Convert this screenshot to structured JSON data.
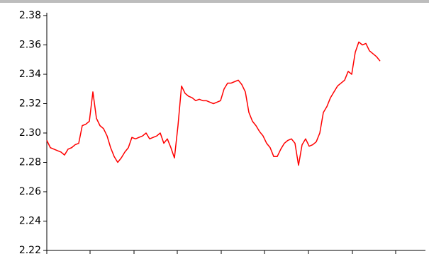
{
  "chart_data": {
    "type": "line",
    "series": [
      {
        "color": "#ff0000",
        "values": [
          2.295,
          2.29,
          2.289,
          2.288,
          2.287,
          2.285,
          2.289,
          2.29,
          2.292,
          2.293,
          2.305,
          2.306,
          2.308,
          2.328,
          2.31,
          2.305,
          2.303,
          2.298,
          2.29,
          2.284,
          2.28,
          2.283,
          2.287,
          2.29,
          2.297,
          2.296,
          2.297,
          2.298,
          2.3,
          2.296,
          2.297,
          2.298,
          2.3,
          2.293,
          2.296,
          2.29,
          2.283,
          2.305,
          2.332,
          2.327,
          2.325,
          2.324,
          2.322,
          2.323,
          2.322,
          2.322,
          2.321,
          2.32,
          2.321,
          2.322,
          2.33,
          2.334,
          2.334,
          2.335,
          2.336,
          2.333,
          2.328,
          2.314,
          2.308,
          2.305,
          2.301,
          2.298,
          2.293,
          2.29,
          2.284,
          2.284,
          2.289,
          2.293,
          2.295,
          2.296,
          2.293,
          2.278,
          2.292,
          2.296,
          2.291,
          2.292,
          2.294,
          2.3,
          2.314,
          2.318,
          2.324,
          2.328,
          2.332,
          2.334,
          2.336,
          2.342,
          2.34,
          2.355,
          2.362,
          2.36,
          2.361,
          2.356,
          2.354,
          2.352,
          2.349
        ]
      }
    ],
    "ylim": [
      2.22,
      2.38
    ],
    "yticks": [
      2.22,
      2.24,
      2.26,
      2.28,
      {
        "value": 2.3,
        "label": "2.30"
      },
      2.32,
      2.34,
      2.36,
      2.38
    ]
  }
}
